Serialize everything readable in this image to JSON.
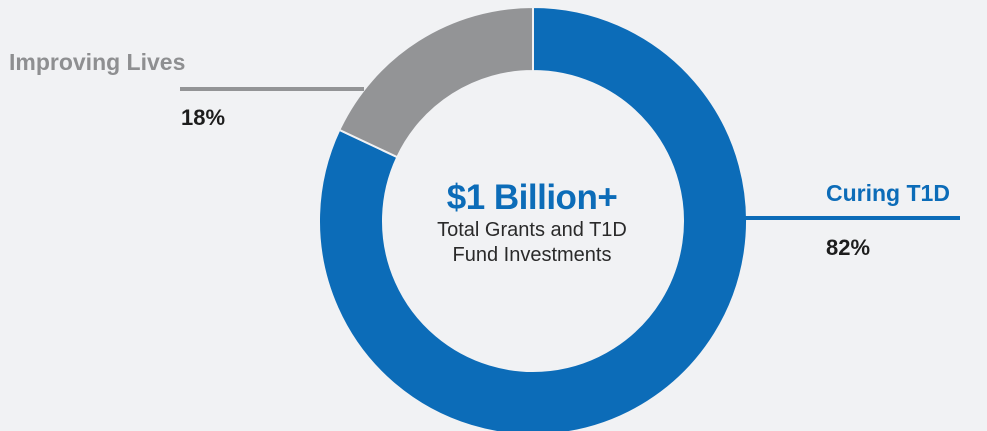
{
  "colors": {
    "background": "#f1f2f4",
    "curing": "#0c6cb8",
    "improving": "#939496",
    "text_dark": "#1d1d1d"
  },
  "center": {
    "headline": "$1 Billion+",
    "subtext_line1": "Total Grants and T1D",
    "subtext_line2": "Fund Investments"
  },
  "chart_data": {
    "type": "pie",
    "donut": true,
    "categories": [
      "Curing T1D",
      "Improving Lives"
    ],
    "values": [
      82,
      18
    ],
    "labels": [
      "82%",
      "18%"
    ],
    "colors": [
      "#0c6cb8",
      "#939496"
    ]
  }
}
